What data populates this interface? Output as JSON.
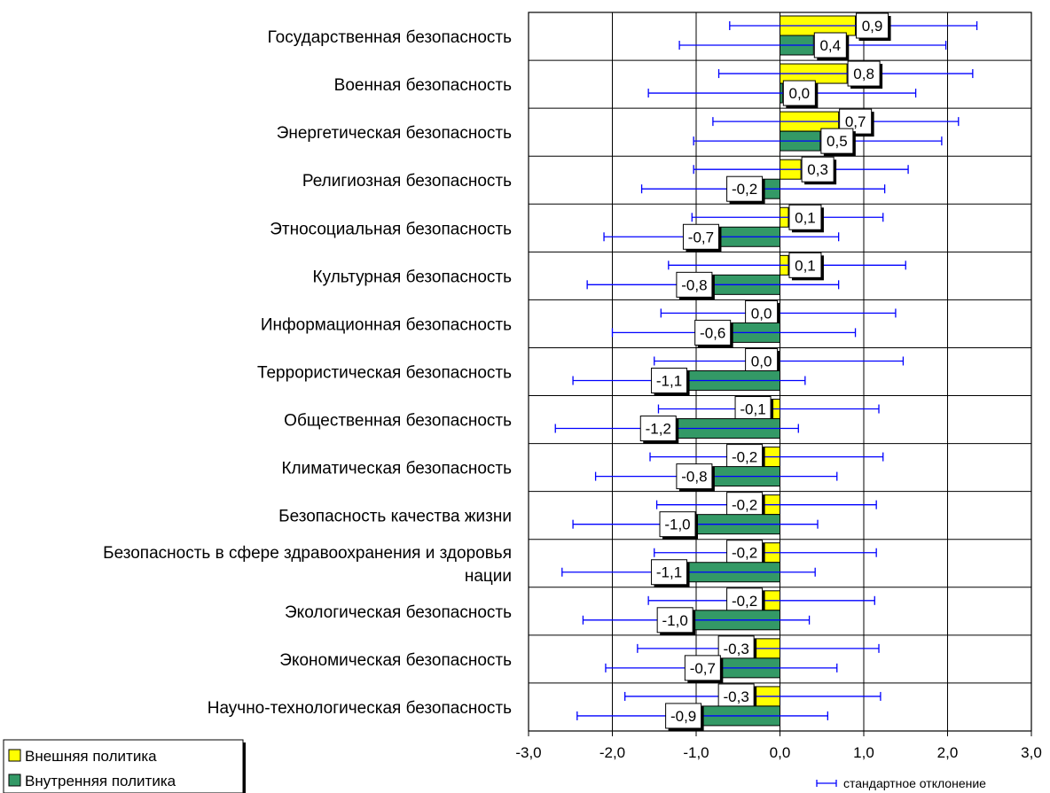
{
  "chart_data": {
    "type": "bar",
    "orientation": "horizontal",
    "categories": [
      "Государственная безопасность",
      "Военная безопасность",
      "Энергетическая безопасность",
      "Религиозная безопасность",
      "Этносоциальная безопасность",
      "Культурная безопасность",
      "Информационная безопасность",
      "Террористическая безопасность",
      "Общественная безопасность",
      "Климатическая безопасность",
      "Безопасность качества жизни",
      "Безопасность в сфере здравоохранения и здоровья нации",
      "Экологическая безопасность",
      "Экономическая безопасность",
      "Научно-технологическая безопасность"
    ],
    "category_lines": [
      [
        "Государственная безопасность"
      ],
      [
        "Военная безопасность"
      ],
      [
        "Энергетическая безопасность"
      ],
      [
        "Религиозная безопасность"
      ],
      [
        "Этносоциальная безопасность"
      ],
      [
        "Культурная безопасность"
      ],
      [
        "Информационная безопасность"
      ],
      [
        "Террористическая безопасность"
      ],
      [
        "Общественная безопасность"
      ],
      [
        "Климатическая безопасность"
      ],
      [
        "Безопасность качества жизни"
      ],
      [
        "Безопасность в сфере здравоохранения и здоровья",
        "нации"
      ],
      [
        "Экологическая безопасность"
      ],
      [
        "Экономическая безопасность"
      ],
      [
        "Научно-технологическая безопасность"
      ]
    ],
    "series": [
      {
        "name": "Внешняя политика",
        "color": "#ffff00",
        "values": [
          0.9,
          0.8,
          0.7,
          0.25,
          0.1,
          0.1,
          -0.02,
          -0.02,
          -0.1,
          -0.2,
          -0.2,
          -0.2,
          -0.2,
          -0.3,
          -0.3
        ],
        "labels": [
          "0,9",
          "0,8",
          "0,7",
          "0,3",
          "0,1",
          "0,1",
          "0,0",
          "0,0",
          "-0,1",
          "-0,2",
          "-0,2",
          "-0,2",
          "-0,2",
          "-0,3",
          "-0,3"
        ],
        "error_low": [
          -0.6,
          -0.73,
          -0.8,
          -1.03,
          -1.05,
          -1.33,
          -1.42,
          -1.5,
          -1.45,
          -1.55,
          -1.47,
          -1.5,
          -1.57,
          -1.7,
          -1.85
        ],
        "error_high": [
          2.35,
          2.3,
          2.13,
          1.53,
          1.23,
          1.5,
          1.38,
          1.47,
          1.18,
          1.23,
          1.15,
          1.15,
          1.13,
          1.18,
          1.2
        ]
      },
      {
        "name": "Внутренняя политика",
        "color": "#339966",
        "values": [
          0.4,
          0.03,
          0.48,
          -0.2,
          -0.72,
          -0.8,
          -0.58,
          -1.1,
          -1.23,
          -0.8,
          -1.0,
          -1.1,
          -1.03,
          -0.7,
          -0.93
        ],
        "labels": [
          "0,4",
          "0,0",
          "0,5",
          "-0,2",
          "-0,7",
          "-0,8",
          "-0,6",
          "-1,1",
          "-1,2",
          "-0,8",
          "-1,0",
          "-1,1",
          "-1,0",
          "-0,7",
          "-0,9"
        ],
        "error_low": [
          -1.2,
          -1.57,
          -1.03,
          -1.65,
          -2.1,
          -2.3,
          -2.0,
          -2.47,
          -2.68,
          -2.2,
          -2.47,
          -2.6,
          -2.35,
          -2.08,
          -2.42
        ],
        "error_high": [
          1.98,
          1.62,
          1.93,
          1.25,
          0.7,
          0.7,
          0.9,
          0.3,
          0.22,
          0.68,
          0.45,
          0.42,
          0.35,
          0.68,
          0.57
        ]
      }
    ],
    "xlim": [
      -3.0,
      3.0
    ],
    "x_ticks": [
      -3.0,
      -2.0,
      -1.0,
      0.0,
      1.0,
      2.0,
      3.0
    ],
    "x_tick_labels": [
      "-3,0",
      "-2,0",
      "-1,0",
      "0,0",
      "1,0",
      "2,0",
      "3,0"
    ],
    "grid": true,
    "legend_position": "bottom-left",
    "error_bar_legend": "стандартное отклонение",
    "error_bar_color": "#0000ff",
    "title": "",
    "xlabel": "",
    "ylabel": ""
  }
}
